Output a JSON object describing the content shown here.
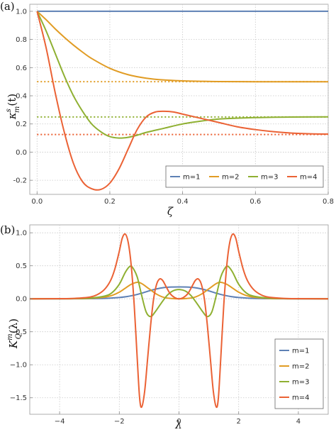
{
  "chart_data": [
    {
      "type": "line",
      "panel_label": "(a)",
      "xlabel": "ζ",
      "ylabel": "κ",
      "ylabel_sup": "s",
      "ylabel_sub": "m",
      "ylabel_arg": "(t)",
      "xlim": [
        -0.02,
        0.8
      ],
      "ylim": [
        -0.3,
        1.05
      ],
      "xticks": [
        0.0,
        0.2,
        0.4,
        0.6,
        0.8
      ],
      "xtick_labels": [
        "0.0",
        "0.2",
        "0.4",
        "0.6",
        "0.8"
      ],
      "yticks": [
        -0.2,
        0.0,
        0.2,
        0.4,
        0.6,
        0.8,
        1.0
      ],
      "ytick_labels": [
        "-0.2",
        "0.0",
        "0.2",
        "0.4",
        "0.6",
        "0.8",
        "1.0"
      ],
      "grid": true,
      "legend_position": "bottom-right",
      "legend_layout": "horizontal",
      "series": [
        {
          "name": "m=1",
          "color": "#5e81b5",
          "asymptote": 1.0,
          "x": [
            0,
            0.05,
            0.1,
            0.2,
            0.3,
            0.4,
            0.5,
            0.6,
            0.7,
            0.8
          ],
          "y": [
            1,
            1,
            1,
            1,
            1,
            1,
            1,
            1,
            1,
            1
          ]
        },
        {
          "name": "m=2",
          "color": "#e19c24",
          "asymptote": 0.5,
          "x": [
            0,
            0.025,
            0.05,
            0.075,
            0.1,
            0.125,
            0.15,
            0.2,
            0.25,
            0.3,
            0.35,
            0.4,
            0.45,
            0.5,
            0.6,
            0.7,
            0.8
          ],
          "y": [
            1,
            0.94,
            0.875,
            0.815,
            0.76,
            0.71,
            0.665,
            0.595,
            0.55,
            0.525,
            0.512,
            0.506,
            0.503,
            0.501,
            0.5,
            0.5,
            0.5
          ]
        },
        {
          "name": "m=3",
          "color": "#8fb032",
          "asymptote": 0.25,
          "x": [
            0,
            0.025,
            0.05,
            0.075,
            0.1,
            0.125,
            0.15,
            0.175,
            0.2,
            0.225,
            0.25,
            0.275,
            0.3,
            0.35,
            0.4,
            0.45,
            0.5,
            0.6,
            0.7,
            0.8
          ],
          "y": [
            1,
            0.86,
            0.7,
            0.54,
            0.4,
            0.29,
            0.2,
            0.145,
            0.11,
            0.1,
            0.105,
            0.12,
            0.14,
            0.17,
            0.2,
            0.22,
            0.235,
            0.245,
            0.249,
            0.25
          ]
        },
        {
          "name": "m=4",
          "color": "#eb6235",
          "asymptote": 0.125,
          "x": [
            0,
            0.025,
            0.05,
            0.075,
            0.1,
            0.125,
            0.15,
            0.175,
            0.2,
            0.225,
            0.25,
            0.275,
            0.3,
            0.325,
            0.35,
            0.375,
            0.4,
            0.45,
            0.5,
            0.55,
            0.6,
            0.65,
            0.7,
            0.75,
            0.8
          ],
          "y": [
            1,
            0.74,
            0.42,
            0.14,
            -0.08,
            -0.21,
            -0.26,
            -0.265,
            -0.22,
            -0.12,
            0.02,
            0.16,
            0.25,
            0.285,
            0.29,
            0.285,
            0.27,
            0.24,
            0.21,
            0.18,
            0.16,
            0.145,
            0.135,
            0.13,
            0.128
          ]
        }
      ],
      "legend": [
        "m=1",
        "m=2",
        "m=3",
        "m=4"
      ]
    },
    {
      "type": "line",
      "panel_label": "(b)",
      "xlabel": "λ",
      "ylabel": "K",
      "ylabel_sup": "m",
      "ylabel_sub": "Q",
      "ylabel_arg": "(λ)",
      "xlim": [
        -5,
        5
      ],
      "ylim": [
        -1.75,
        1.12
      ],
      "xticks": [
        -4,
        -2,
        0,
        2,
        4
      ],
      "xtick_labels": [
        "−4",
        "−2",
        "0",
        "2",
        "4"
      ],
      "yticks": [
        -1.5,
        -1.0,
        -0.5,
        0.0,
        0.5,
        1.0
      ],
      "ytick_labels": [
        "−1.5",
        "−1.0",
        "−0.5",
        "0.0",
        "0.5",
        "1.0"
      ],
      "grid": true,
      "legend_position": "bottom-right",
      "legend_layout": "vertical",
      "series": [
        {
          "name": "m=1",
          "color": "#5e81b5",
          "x": [
            0,
            0.25,
            0.5,
            0.75,
            1.0,
            1.25,
            1.5,
            1.75,
            2.0,
            2.5,
            3.0,
            3.5,
            4.0,
            5.0
          ],
          "y": [
            0.18,
            0.178,
            0.17,
            0.15,
            0.12,
            0.085,
            0.055,
            0.033,
            0.02,
            0.006,
            0.002,
            0.0005,
            0.0001,
            0
          ]
        },
        {
          "name": "m=2",
          "color": "#e19c24",
          "x": [
            0,
            0.25,
            0.5,
            0.75,
            1.0,
            1.25,
            1.4,
            1.6,
            1.8,
            2.0,
            2.25,
            2.5,
            3.0,
            3.5,
            4.0,
            5.0
          ],
          "y": [
            0,
            0.005,
            0.02,
            0.07,
            0.15,
            0.23,
            0.25,
            0.22,
            0.16,
            0.1,
            0.05,
            0.025,
            0.006,
            0.0015,
            0.0003,
            0
          ]
        },
        {
          "name": "m=3",
          "color": "#8fb032",
          "x": [
            0,
            0.2,
            0.4,
            0.6,
            0.8,
            0.95,
            1.1,
            1.25,
            1.4,
            1.55,
            1.65,
            1.8,
            2.0,
            2.25,
            2.5,
            3.0,
            3.5,
            4.0,
            5.0
          ],
          "y": [
            0.14,
            0.12,
            0.05,
            -0.07,
            -0.2,
            -0.27,
            -0.2,
            0.05,
            0.33,
            0.47,
            0.49,
            0.4,
            0.22,
            0.09,
            0.04,
            0.01,
            0.002,
            0.0005,
            0
          ]
        },
        {
          "name": "m=4",
          "color": "#eb6235",
          "x": [
            0,
            0.15,
            0.3,
            0.45,
            0.55,
            0.65,
            0.75,
            0.85,
            0.95,
            1.05,
            1.15,
            1.25,
            1.32,
            1.4,
            1.5,
            1.6,
            1.7,
            1.8,
            1.9,
            2.0,
            2.15,
            2.3,
            2.5,
            2.75,
            3.0,
            3.5,
            4.0,
            5.0
          ],
          "y": [
            0,
            0.02,
            0.08,
            0.2,
            0.28,
            0.3,
            0.22,
            0.0,
            -0.4,
            -0.9,
            -1.4,
            -1.64,
            -1.5,
            -0.9,
            -0.1,
            0.5,
            0.85,
            0.98,
            0.92,
            0.72,
            0.45,
            0.27,
            0.14,
            0.06,
            0.025,
            0.006,
            0.0015,
            0
          ]
        }
      ],
      "legend": [
        "m=1",
        "m=2",
        "m=3",
        "m=4"
      ]
    }
  ]
}
